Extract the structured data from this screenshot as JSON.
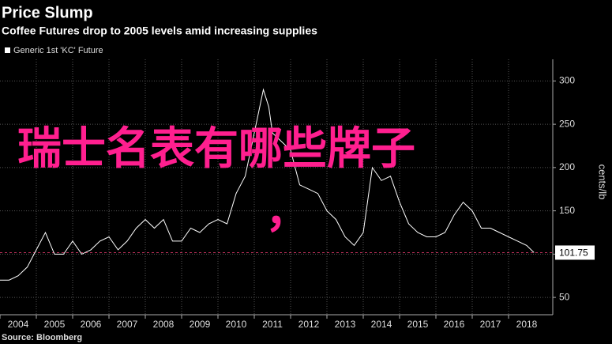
{
  "chart_data": {
    "type": "line",
    "title": "Price Slump",
    "subtitle": "Coffee Futures drop to 2005 levels amid increasing supplies",
    "y_label": "cents/lb",
    "source": "Source: Bloomberg",
    "overlay_text": "瑞士名表有哪些牌子",
    "overlay_comma": "，",
    "x": [
      2004.0,
      2004.25,
      2004.5,
      2004.75,
      2005.0,
      2005.25,
      2005.5,
      2005.75,
      2006.0,
      2006.25,
      2006.5,
      2006.75,
      2007.0,
      2007.25,
      2007.5,
      2007.75,
      2008.0,
      2008.25,
      2008.5,
      2008.75,
      2009.0,
      2009.25,
      2009.5,
      2009.75,
      2010.0,
      2010.25,
      2010.5,
      2010.75,
      2011.0,
      2011.25,
      2011.4,
      2011.5,
      2011.75,
      2012.0,
      2012.25,
      2012.5,
      2012.75,
      2013.0,
      2013.25,
      2013.5,
      2013.75,
      2014.0,
      2014.25,
      2014.5,
      2014.75,
      2015.0,
      2015.25,
      2015.5,
      2015.75,
      2016.0,
      2016.25,
      2016.5,
      2016.75,
      2017.0,
      2017.25,
      2017.5,
      2017.75,
      2018.0,
      2018.25,
      2018.5,
      2018.7
    ],
    "series": [
      {
        "name": "Generic 1st 'KC' Future",
        "color": "#ffffff",
        "values": [
          70,
          70,
          75,
          85,
          105,
          125,
          100,
          100,
          115,
          100,
          105,
          115,
          120,
          105,
          115,
          130,
          140,
          130,
          140,
          115,
          115,
          130,
          125,
          135,
          140,
          135,
          170,
          190,
          240,
          290,
          270,
          240,
          230,
          220,
          180,
          175,
          170,
          150,
          140,
          120,
          110,
          125,
          200,
          185,
          190,
          160,
          135,
          125,
          120,
          120,
          125,
          145,
          160,
          150,
          130,
          130,
          125,
          120,
          115,
          110,
          101.75
        ]
      }
    ],
    "last_value": 101.75,
    "reference_color": "#c0305a",
    "xlim": [
      2004,
      2019
    ],
    "xticks": [
      2004,
      2005,
      2006,
      2007,
      2008,
      2009,
      2010,
      2011,
      2012,
      2013,
      2014,
      2015,
      2016,
      2017,
      2018
    ],
    "ylim": [
      30,
      325
    ],
    "yticks": [
      50,
      100,
      150,
      200,
      250,
      300
    ],
    "grid": true
  }
}
